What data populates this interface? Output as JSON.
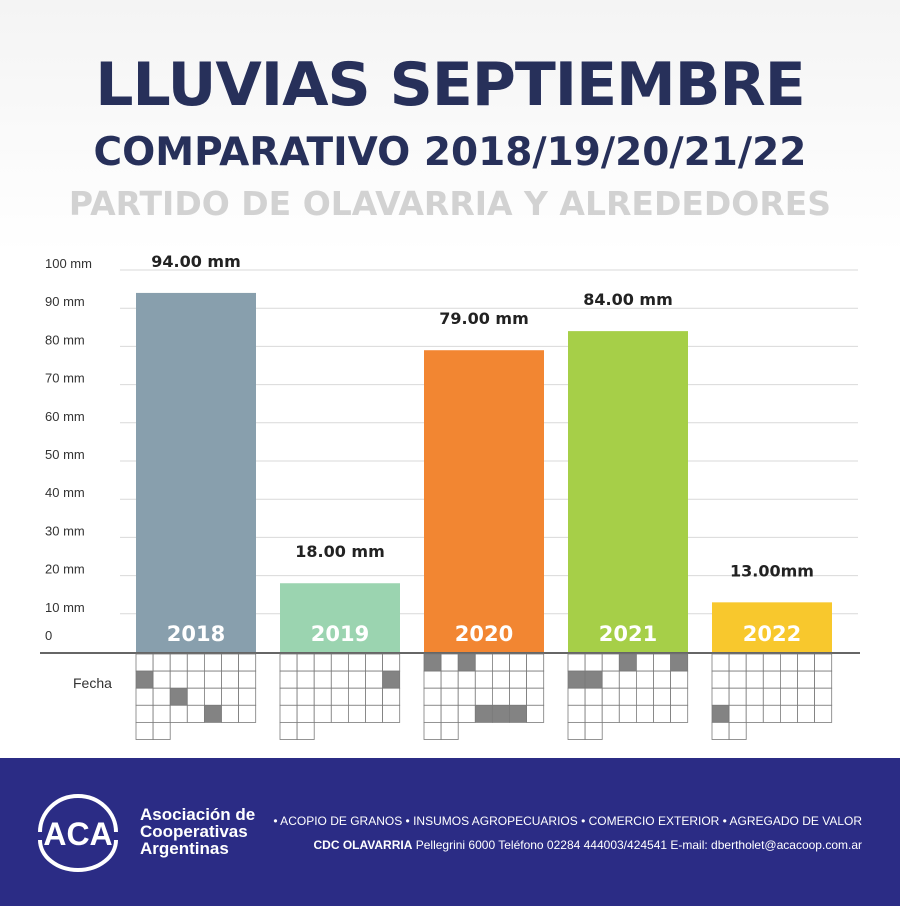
{
  "header": {
    "title": "LLUVIAS SEPTIEMBRE",
    "subtitle": "COMPARATIVO 2018/19/20/21/22",
    "region": "PARTIDO DE OLAVARRIA Y ALREDEDORES"
  },
  "chart_data": {
    "type": "bar",
    "title": "LLUVIAS SEPTIEMBRE",
    "categories": [
      "2018",
      "2019",
      "2020",
      "2021",
      "2022"
    ],
    "values": [
      94,
      18,
      79,
      84,
      13
    ],
    "value_labels": [
      "94.00 mm",
      "18.00 mm",
      "79.00 mm",
      "84.00 mm",
      "13.00mm"
    ],
    "colors": [
      "#889fad",
      "#9bd4b0",
      "#f28632",
      "#a6cf48",
      "#f8c82d"
    ],
    "ylim": [
      0,
      100
    ],
    "yticks": [
      "0",
      "10 mm",
      "20 mm",
      "30 mm",
      "40 mm",
      "50 mm",
      "60 mm",
      "70 mm",
      "80 mm",
      "90 mm",
      "100 mm"
    ],
    "ylabel": "",
    "xlabel": "Fecha",
    "grid": true,
    "calendars": [
      {
        "year": "2018",
        "rain_days": [
          8,
          17,
          26
        ]
      },
      {
        "year": "2019",
        "rain_days": [
          14
        ]
      },
      {
        "year": "2020",
        "rain_days": [
          1,
          3,
          25,
          26,
          27
        ]
      },
      {
        "year": "2021",
        "rain_days": [
          4,
          7,
          8,
          9
        ]
      },
      {
        "year": "2022",
        "rain_days": [
          22
        ]
      }
    ]
  },
  "footer": {
    "logo_text": "ACA",
    "org_line1": "Asociación de",
    "org_line2": "Cooperativas",
    "org_line3": "Argentinas",
    "services": "•  ACOPIO DE GRANOS  •  INSUMOS AGROPECUARIOS  •  COMERCIO EXTERIOR  •  AGREGADO DE VALOR",
    "contact_bold": "CDC OLAVARRIA",
    "contact_rest": " Pellegrini 6000 Teléfono 02284 444003/424541 E-mail: dbertholet@acacoop.com.ar"
  }
}
